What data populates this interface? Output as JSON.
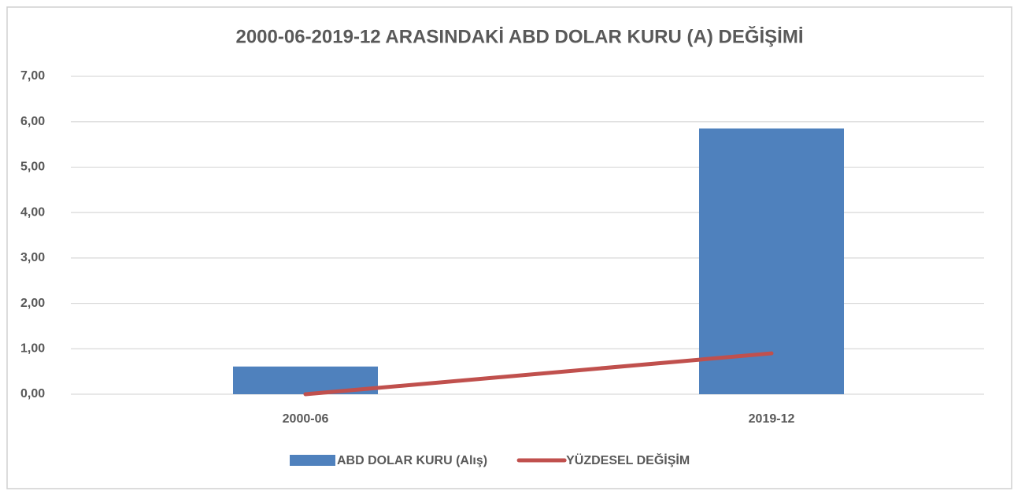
{
  "chart_data": {
    "type": "bar",
    "title": "2000-06-2019-12 ARASINDAKİ ABD DOLAR KURU (A) DEĞİŞİMİ",
    "categories": [
      "2000-06",
      "2019-12"
    ],
    "series": [
      {
        "name": "ABD DOLAR KURU (Alış)",
        "type": "bar",
        "color": "#4f81bd",
        "values": [
          0.61,
          5.85
        ]
      },
      {
        "name": "YÜZDESEL DEĞİŞİM",
        "type": "line",
        "color": "#c0504d",
        "values": [
          0.0,
          0.9
        ]
      }
    ],
    "ylim": [
      0,
      7
    ],
    "yticks": [
      {
        "value": 0,
        "label": "0,00"
      },
      {
        "value": 1,
        "label": "1,00"
      },
      {
        "value": 2,
        "label": "2,00"
      },
      {
        "value": 3,
        "label": "3,00"
      },
      {
        "value": 4,
        "label": "4,00"
      },
      {
        "value": 5,
        "label": "5,00"
      },
      {
        "value": 6,
        "label": "6,00"
      },
      {
        "value": 7,
        "label": "7,00"
      }
    ],
    "grid": true,
    "legend": "bottom"
  }
}
